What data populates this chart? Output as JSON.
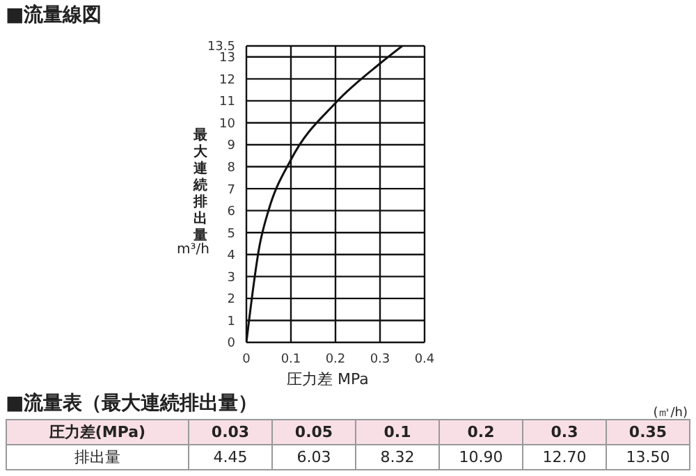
{
  "chart_data": {
    "type": "line",
    "title": "■流量線図",
    "xlabel": "圧力差  MPa",
    "ylabel": "最大連続排出量",
    "annotations": [
      "m³/h",
      "■流量表（最大連続排出量）",
      "(㎥/h)",
      "圧力差(MPa)",
      "0.03",
      "0.05",
      "0.1",
      "0.2",
      "0.3",
      "0.35",
      "排出量",
      "4.45",
      "6.03",
      "8.32",
      "10.90",
      "12.70",
      "13.50"
    ],
    "x": [
      0,
      0.03,
      0.05,
      0.1,
      0.2,
      0.3,
      0.35
    ],
    "series": [
      {
        "color": "#111111",
        "values": [
          0,
          4.45,
          6.03,
          8.32,
          10.9,
          12.7,
          13.5
        ]
      }
    ],
    "xlim": [
      0,
      0.4
    ],
    "xticks": [
      0,
      0.1,
      0.2,
      0.3,
      0.4
    ],
    "ylim": [
      0,
      13.5
    ],
    "yticks": [
      0,
      1,
      2,
      3,
      4,
      5,
      6,
      7,
      8,
      9,
      10,
      11,
      12,
      13,
      13.5
    ],
    "grid": true
  }
}
